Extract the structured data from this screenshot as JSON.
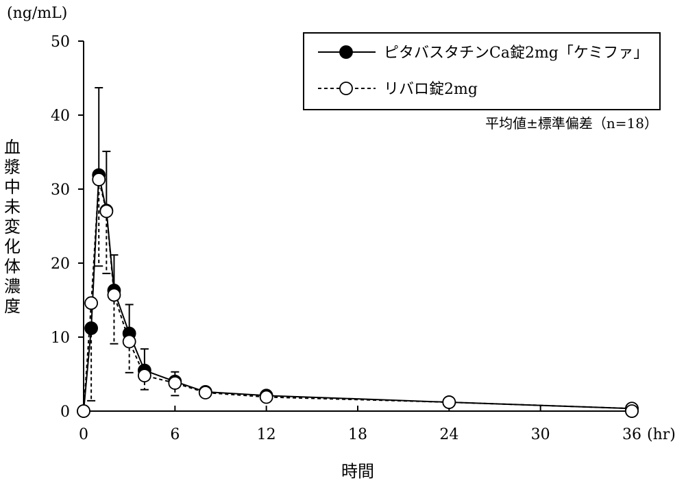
{
  "chart_data": {
    "type": "line",
    "y_unit": "(ng/mL)",
    "x_unit": "(hr)",
    "xlabel": "時間",
    "ylabel": "血漿中未変化体濃度",
    "xlim": [
      0,
      36
    ],
    "ylim": [
      0,
      50
    ],
    "x_ticks": [
      0,
      6,
      12,
      18,
      24,
      30,
      36
    ],
    "y_ticks": [
      0,
      10,
      20,
      30,
      40,
      50
    ],
    "note": "平均値±標準偏差（n=18）",
    "legend_position": "top-right",
    "grid": false,
    "series": [
      {
        "name": "ピタバスタチンCa錠2mg「ケミファ」",
        "marker": "filled-circle",
        "line_style": "solid",
        "points": [
          {
            "x": 0,
            "y": 0,
            "sd": 0
          },
          {
            "x": 0.5,
            "y": 11.2,
            "sd": 0
          },
          {
            "x": 1,
            "y": 31.9,
            "sd": 11.8
          },
          {
            "x": 1.5,
            "y": 27.1,
            "sd": 8.0
          },
          {
            "x": 2,
            "y": 16.3,
            "sd": 4.8
          },
          {
            "x": 3,
            "y": 10.5,
            "sd": 3.9
          },
          {
            "x": 4,
            "y": 5.5,
            "sd": 2.9
          },
          {
            "x": 6,
            "y": 4.0,
            "sd": 1.3
          },
          {
            "x": 8,
            "y": 2.6,
            "sd": 0
          },
          {
            "x": 12,
            "y": 2.1,
            "sd": 0
          },
          {
            "x": 24,
            "y": 1.2,
            "sd": 0
          },
          {
            "x": 36,
            "y": 0.35,
            "sd": 0
          },
          {
            "x": 36,
            "y": 0.0,
            "sd": 0
          }
        ]
      },
      {
        "name": "リバロ錠2mg",
        "marker": "open-circle",
        "line_style": "dashed",
        "points": [
          {
            "x": 0,
            "y": 0,
            "sd": 0
          },
          {
            "x": 0.5,
            "y": 14.6,
            "sd": 13.2
          },
          {
            "x": 1,
            "y": 31.3,
            "sd": 11.7
          },
          {
            "x": 1.5,
            "y": 27.0,
            "sd": 8.4
          },
          {
            "x": 2,
            "y": 15.7,
            "sd": 6.6
          },
          {
            "x": 3,
            "y": 9.4,
            "sd": 4.2
          },
          {
            "x": 4,
            "y": 4.8,
            "sd": 1.9
          },
          {
            "x": 6,
            "y": 3.8,
            "sd": 1.7
          },
          {
            "x": 8,
            "y": 2.5,
            "sd": 0
          },
          {
            "x": 12,
            "y": 1.9,
            "sd": 0
          },
          {
            "x": 24,
            "y": 1.2,
            "sd": 0
          },
          {
            "x": 36,
            "y": 0.35,
            "sd": 0
          },
          {
            "x": 36,
            "y": 0.0,
            "sd": 0
          }
        ]
      }
    ]
  }
}
